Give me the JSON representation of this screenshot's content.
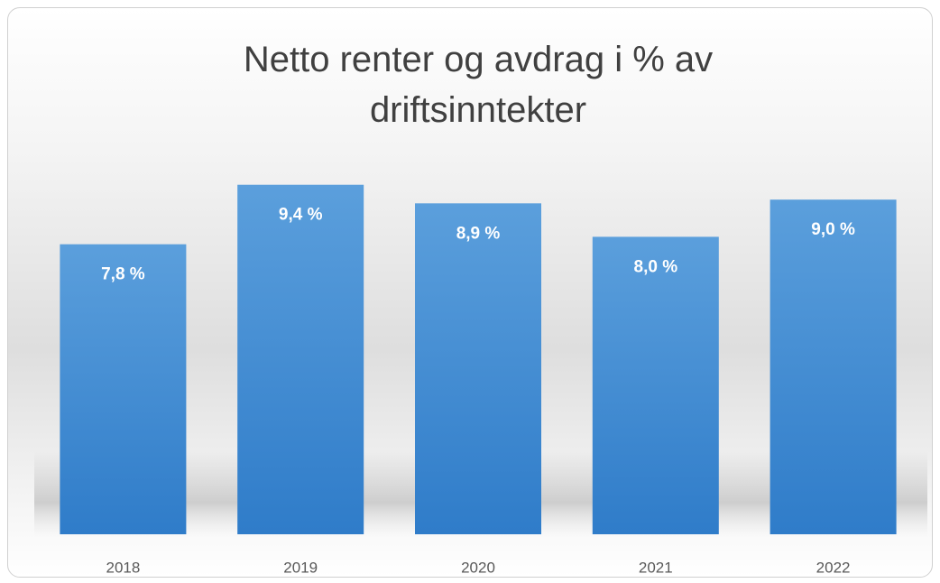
{
  "chart_data": {
    "type": "bar",
    "title": "Netto renter og avdrag i % av driftsinntekter",
    "categories": [
      "2018",
      "2019",
      "2020",
      "2021",
      "2022"
    ],
    "values": [
      7.8,
      9.4,
      8.9,
      8.0,
      9.0
    ],
    "value_labels": [
      "7,8 %",
      "9,4 %",
      "8,9 %",
      "8,0 %",
      "9,0 %"
    ],
    "color": "#4a8fd6",
    "ylim": [
      0,
      10
    ]
  }
}
